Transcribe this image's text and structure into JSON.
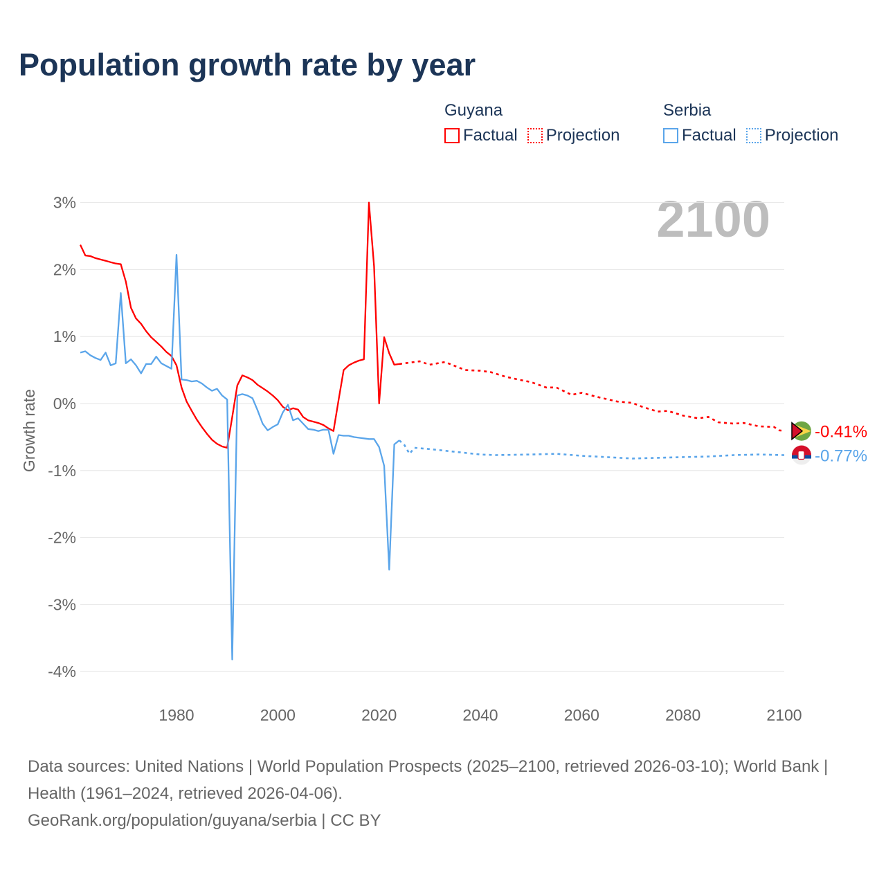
{
  "title": "Population growth rate by year",
  "legend": {
    "groups": [
      {
        "name": "Guyana",
        "factual": "Factual",
        "projection": "Projection",
        "color": "#ff0000"
      },
      {
        "name": "Serbia",
        "factual": "Factual",
        "projection": "Projection",
        "color": "#5aa5ea"
      }
    ]
  },
  "year_watermark": "2100",
  "footer": {
    "sources": "Data sources: United Nations | World Population Prospects (2025–2100, retrieved 2026-03-10); World Bank | Health (1961–2024, retrieved 2026-04-06).",
    "credit": "GeoRank.org/population/guyana/serbia | CC BY"
  },
  "chart_data": {
    "type": "line",
    "title": "Population growth rate by year",
    "xlabel": "",
    "ylabel": "Growth rate",
    "xlim": [
      1961,
      2100
    ],
    "ylim": [
      -4.2,
      3.2
    ],
    "xticks": [
      1980,
      2000,
      2020,
      2040,
      2060,
      2080,
      2100
    ],
    "xtick_labels": [
      "1980",
      "2000",
      "2020",
      "2040",
      "2060",
      "2080",
      "2100"
    ],
    "yticks": [
      3,
      2,
      1,
      0,
      -1,
      -2,
      -3,
      -4
    ],
    "ytick_labels": [
      "3%",
      "2%",
      "1%",
      "0%",
      "-1%",
      "-2%",
      "-3%",
      "-4%"
    ],
    "grid": true,
    "legend_position": "top-right",
    "series": [
      {
        "name": "Guyana",
        "color": "#ff0000",
        "end_label": "-0.41%",
        "factual": {
          "x": [
            1961,
            1962,
            1963,
            1964,
            1965,
            1966,
            1967,
            1968,
            1969,
            1970,
            1971,
            1972,
            1973,
            1974,
            1975,
            1976,
            1977,
            1978,
            1979,
            1980,
            1981,
            1982,
            1983,
            1984,
            1985,
            1986,
            1987,
            1988,
            1989,
            1990,
            1991,
            1992,
            1993,
            1994,
            1995,
            1996,
            1997,
            1998,
            1999,
            2000,
            2001,
            2002,
            2003,
            2004,
            2005,
            2006,
            2007,
            2008,
            2009,
            2010,
            2011,
            2012,
            2013,
            2014,
            2015,
            2016,
            2017,
            2018,
            2019,
            2020,
            2021,
            2022,
            2023,
            2024
          ],
          "y": [
            2.37,
            2.21,
            2.2,
            2.17,
            2.15,
            2.13,
            2.11,
            2.09,
            2.08,
            1.82,
            1.43,
            1.27,
            1.19,
            1.08,
            0.99,
            0.92,
            0.85,
            0.77,
            0.71,
            0.57,
            0.24,
            0.03,
            -0.11,
            -0.24,
            -0.35,
            -0.45,
            -0.54,
            -0.6,
            -0.64,
            -0.66,
            -0.2,
            0.27,
            0.42,
            0.39,
            0.35,
            0.28,
            0.23,
            0.18,
            0.12,
            0.05,
            -0.05,
            -0.1,
            -0.07,
            -0.09,
            -0.2,
            -0.25,
            -0.27,
            -0.29,
            -0.32,
            -0.37,
            -0.41,
            0.05,
            0.5,
            0.57,
            0.61,
            0.64,
            0.66,
            3.0,
            2.05,
            0.0,
            0.99,
            0.75,
            0.58,
            0.59
          ]
        },
        "projection": {
          "x": [
            2024,
            2025,
            2028,
            2030,
            2033,
            2035,
            2037,
            2040,
            2042,
            2045,
            2048,
            2050,
            2053,
            2055,
            2058,
            2060,
            2063,
            2067,
            2070,
            2072,
            2075,
            2077,
            2080,
            2083,
            2085,
            2087,
            2090,
            2092,
            2095,
            2098,
            2099,
            2100
          ],
          "y": [
            0.59,
            0.6,
            0.63,
            0.58,
            0.62,
            0.56,
            0.5,
            0.49,
            0.47,
            0.4,
            0.35,
            0.32,
            0.24,
            0.24,
            0.13,
            0.16,
            0.1,
            0.03,
            0.01,
            -0.05,
            -0.12,
            -0.11,
            -0.18,
            -0.22,
            -0.2,
            -0.28,
            -0.3,
            -0.29,
            -0.34,
            -0.35,
            -0.4,
            -0.41
          ]
        }
      },
      {
        "name": "Serbia",
        "color": "#5aa5ea",
        "end_label": "-0.77%",
        "factual": {
          "x": [
            1961,
            1962,
            1963,
            1964,
            1965,
            1966,
            1967,
            1968,
            1969,
            1970,
            1971,
            1972,
            1973,
            1974,
            1975,
            1976,
            1977,
            1978,
            1979,
            1980,
            1981,
            1982,
            1983,
            1984,
            1985,
            1986,
            1987,
            1988,
            1989,
            1990,
            1991,
            1992,
            1993,
            1994,
            1995,
            1996,
            1997,
            1998,
            1999,
            2000,
            2001,
            2002,
            2003,
            2004,
            2005,
            2006,
            2007,
            2008,
            2009,
            2010,
            2011,
            2012,
            2013,
            2014,
            2015,
            2016,
            2017,
            2018,
            2019,
            2020,
            2021,
            2022,
            2023,
            2024
          ],
          "y": [
            0.76,
            0.78,
            0.72,
            0.68,
            0.65,
            0.76,
            0.57,
            0.6,
            1.65,
            0.6,
            0.66,
            0.57,
            0.45,
            0.59,
            0.59,
            0.7,
            0.6,
            0.56,
            0.52,
            2.22,
            0.36,
            0.35,
            0.33,
            0.34,
            0.3,
            0.24,
            0.19,
            0.22,
            0.12,
            0.06,
            -3.82,
            0.12,
            0.14,
            0.12,
            0.08,
            -0.1,
            -0.3,
            -0.4,
            -0.35,
            -0.31,
            -0.13,
            -0.02,
            -0.25,
            -0.22,
            -0.3,
            -0.38,
            -0.39,
            -0.41,
            -0.39,
            -0.39,
            -0.75,
            -0.47,
            -0.48,
            -0.48,
            -0.5,
            -0.51,
            -0.52,
            -0.53,
            -0.53,
            -0.65,
            -0.93,
            -2.48,
            -0.61,
            -0.55
          ]
        },
        "projection": {
          "x": [
            2024,
            2025,
            2026,
            2027,
            2030,
            2035,
            2040,
            2043,
            2050,
            2055,
            2060,
            2065,
            2070,
            2075,
            2080,
            2085,
            2090,
            2095,
            2100
          ],
          "y": [
            -0.55,
            -0.62,
            -0.75,
            -0.66,
            -0.68,
            -0.72,
            -0.76,
            -0.77,
            -0.76,
            -0.75,
            -0.78,
            -0.8,
            -0.82,
            -0.81,
            -0.8,
            -0.79,
            -0.77,
            -0.76,
            -0.77
          ]
        }
      }
    ]
  }
}
